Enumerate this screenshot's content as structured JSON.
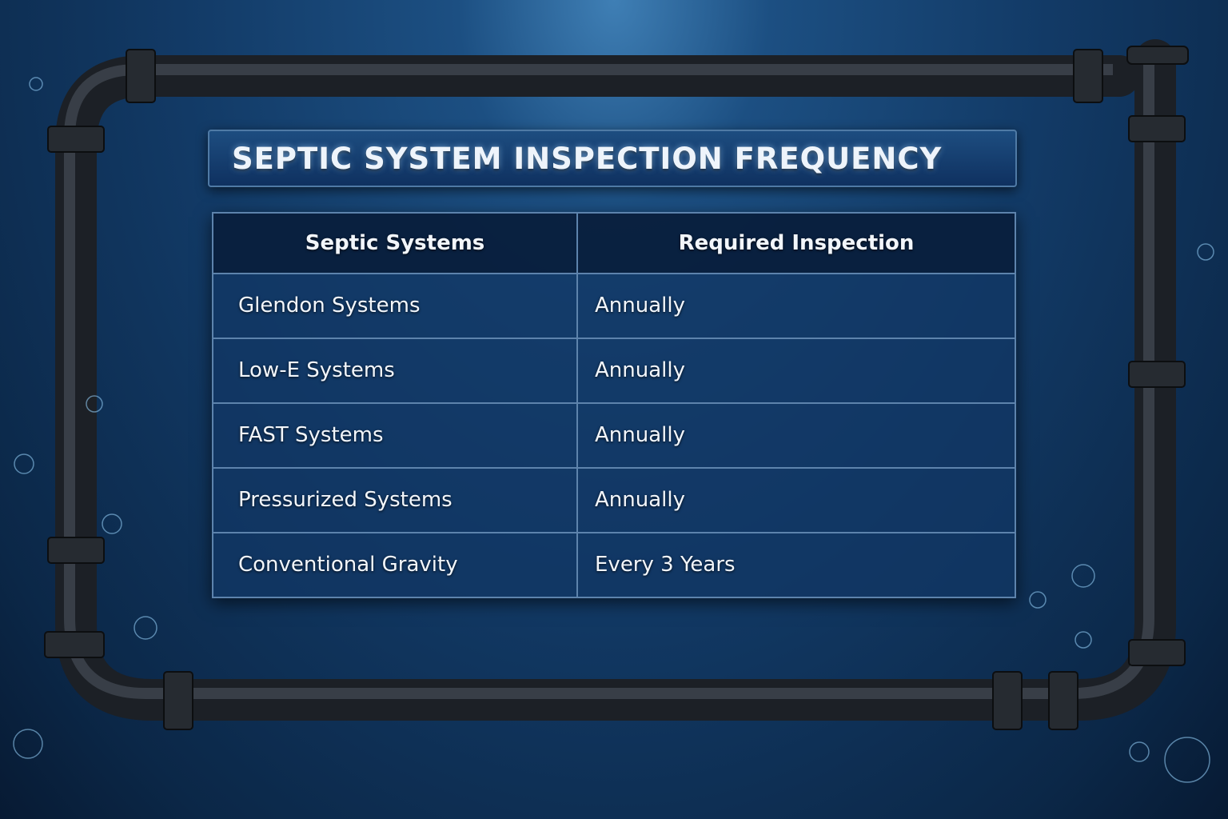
{
  "title": "SEPTIC SYSTEM INSPECTION FREQUENCY",
  "table": {
    "headers": [
      "Septic Systems",
      "Required Inspection"
    ],
    "rows": [
      [
        "Glendon Systems",
        "Annually"
      ],
      [
        "Low-E Systems",
        "Annually"
      ],
      [
        "FAST Systems",
        "Annually"
      ],
      [
        "Pressurized Systems",
        "Annually"
      ],
      [
        "Conventional Gravity",
        "Every 3 Years"
      ]
    ]
  },
  "colors": {
    "background": "#123a66",
    "pipe": "#2a2f36",
    "text": "#f2f6fb",
    "grid": "#5d83ac"
  }
}
